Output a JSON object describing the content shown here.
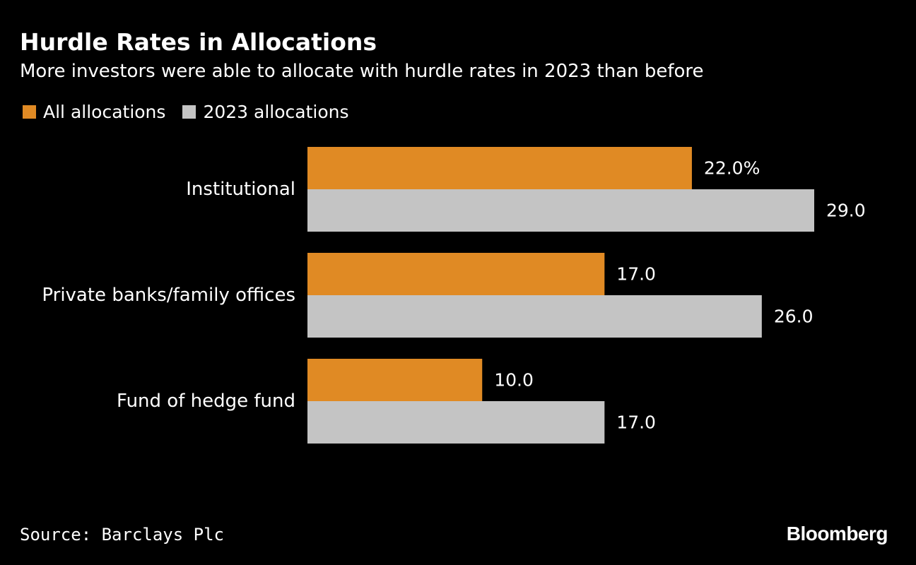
{
  "header": {
    "title": "Hurdle Rates in Allocations",
    "subtitle": "More investors were able to allocate with hurdle rates in 2023 than before"
  },
  "footer": {
    "source": "Source: Barclays Plc",
    "brand": "Bloomberg"
  },
  "colors": {
    "all_allocations": "#e08a24",
    "allocations_2023": "#c4c4c4",
    "background": "#000000"
  },
  "chart_data": {
    "type": "bar",
    "orientation": "horizontal",
    "categories": [
      "Institutional",
      "Private banks/family offices",
      "Fund of hedge fund"
    ],
    "series": [
      {
        "name": "All allocations",
        "values": [
          22.0,
          17.0,
          10.0
        ],
        "labels": [
          "22.0%",
          "17.0",
          "10.0"
        ],
        "color": "#e08a24"
      },
      {
        "name": "2023 allocations",
        "values": [
          29.0,
          26.0,
          17.0
        ],
        "labels": [
          "29.0",
          "26.0",
          "17.0"
        ],
        "color": "#c4c4c4"
      }
    ],
    "xlim": [
      0,
      29.0
    ],
    "grid": false,
    "legend": "top-left"
  }
}
